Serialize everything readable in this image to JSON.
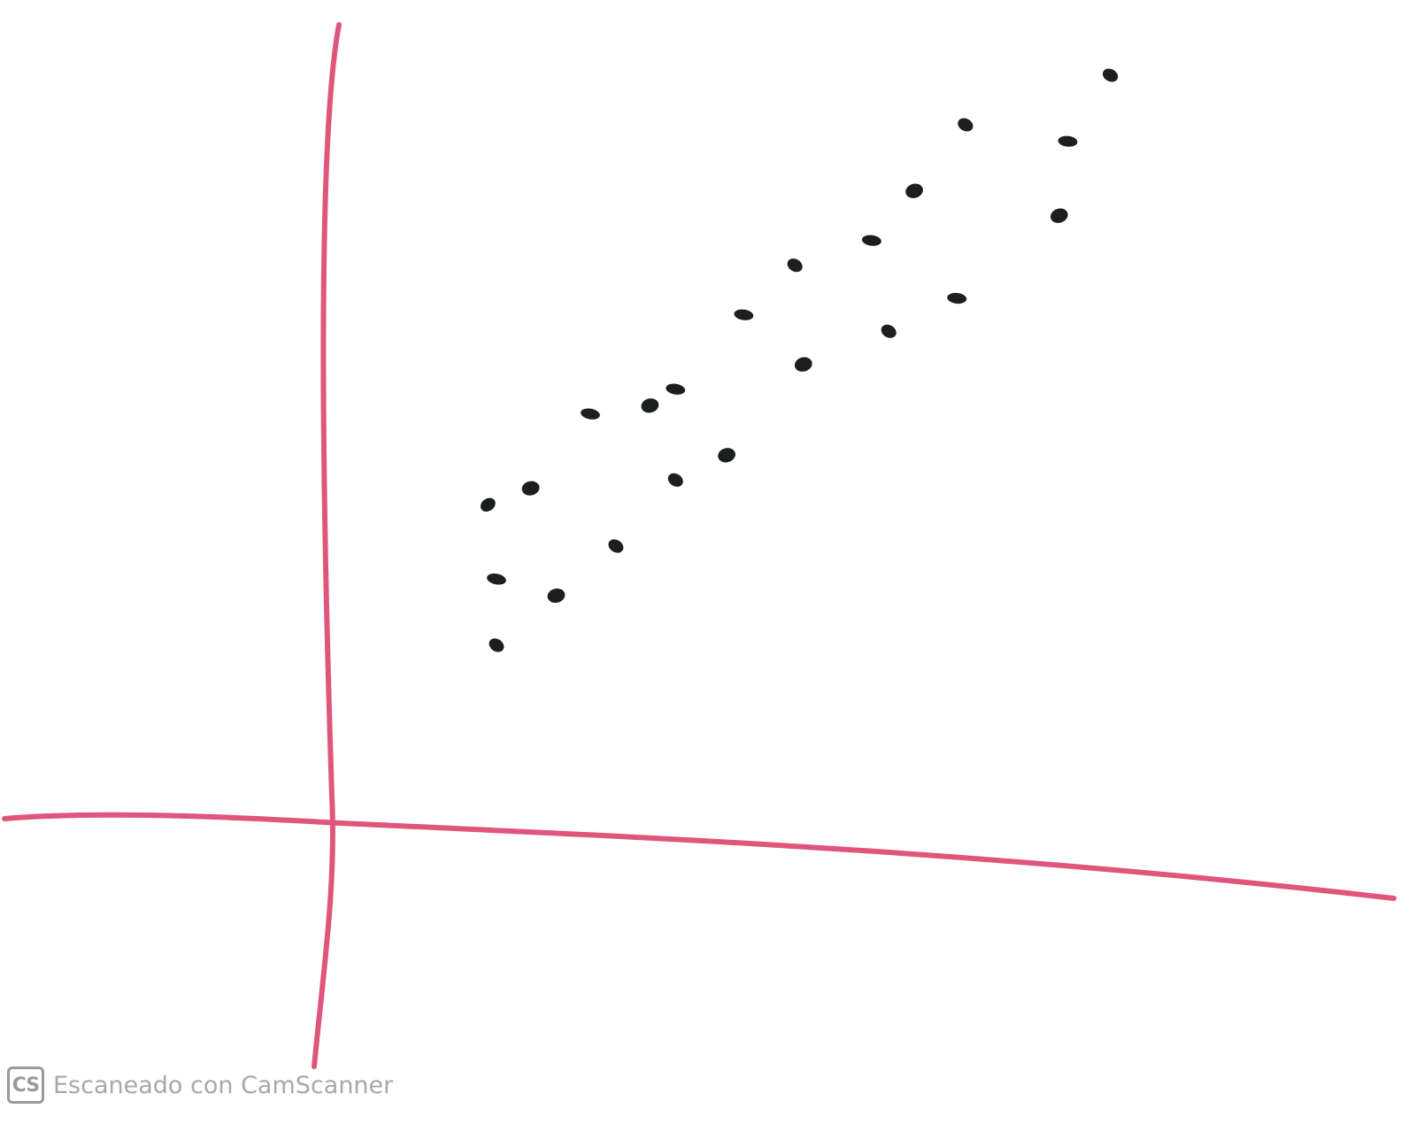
{
  "chart_data": {
    "type": "scatter",
    "title": "",
    "xlabel": "",
    "ylabel": "",
    "grid": false,
    "axis_color": "#e0557a",
    "point_color": "#1b1f1d",
    "xlim": [
      0,
      12
    ],
    "ylim": [
      0,
      9
    ],
    "points": [
      {
        "x": 1.8,
        "y": 3.8
      },
      {
        "x": 2.3,
        "y": 4.0
      },
      {
        "x": 1.9,
        "y": 2.9
      },
      {
        "x": 1.9,
        "y": 2.1
      },
      {
        "x": 2.6,
        "y": 2.7
      },
      {
        "x": 3.0,
        "y": 4.9
      },
      {
        "x": 3.3,
        "y": 3.3
      },
      {
        "x": 3.7,
        "y": 5.0
      },
      {
        "x": 4.0,
        "y": 5.2
      },
      {
        "x": 4.0,
        "y": 4.1
      },
      {
        "x": 4.6,
        "y": 4.4
      },
      {
        "x": 4.8,
        "y": 6.1
      },
      {
        "x": 5.4,
        "y": 6.7
      },
      {
        "x": 5.5,
        "y": 5.5
      },
      {
        "x": 6.3,
        "y": 7.0
      },
      {
        "x": 6.5,
        "y": 5.9
      },
      {
        "x": 6.8,
        "y": 7.6
      },
      {
        "x": 7.3,
        "y": 6.3
      },
      {
        "x": 7.4,
        "y": 8.4
      },
      {
        "x": 8.5,
        "y": 7.3
      },
      {
        "x": 8.6,
        "y": 8.2
      },
      {
        "x": 9.1,
        "y": 9.0
      }
    ]
  },
  "watermark": {
    "badge": "CS",
    "text": "Escaneado con CamScanner"
  }
}
